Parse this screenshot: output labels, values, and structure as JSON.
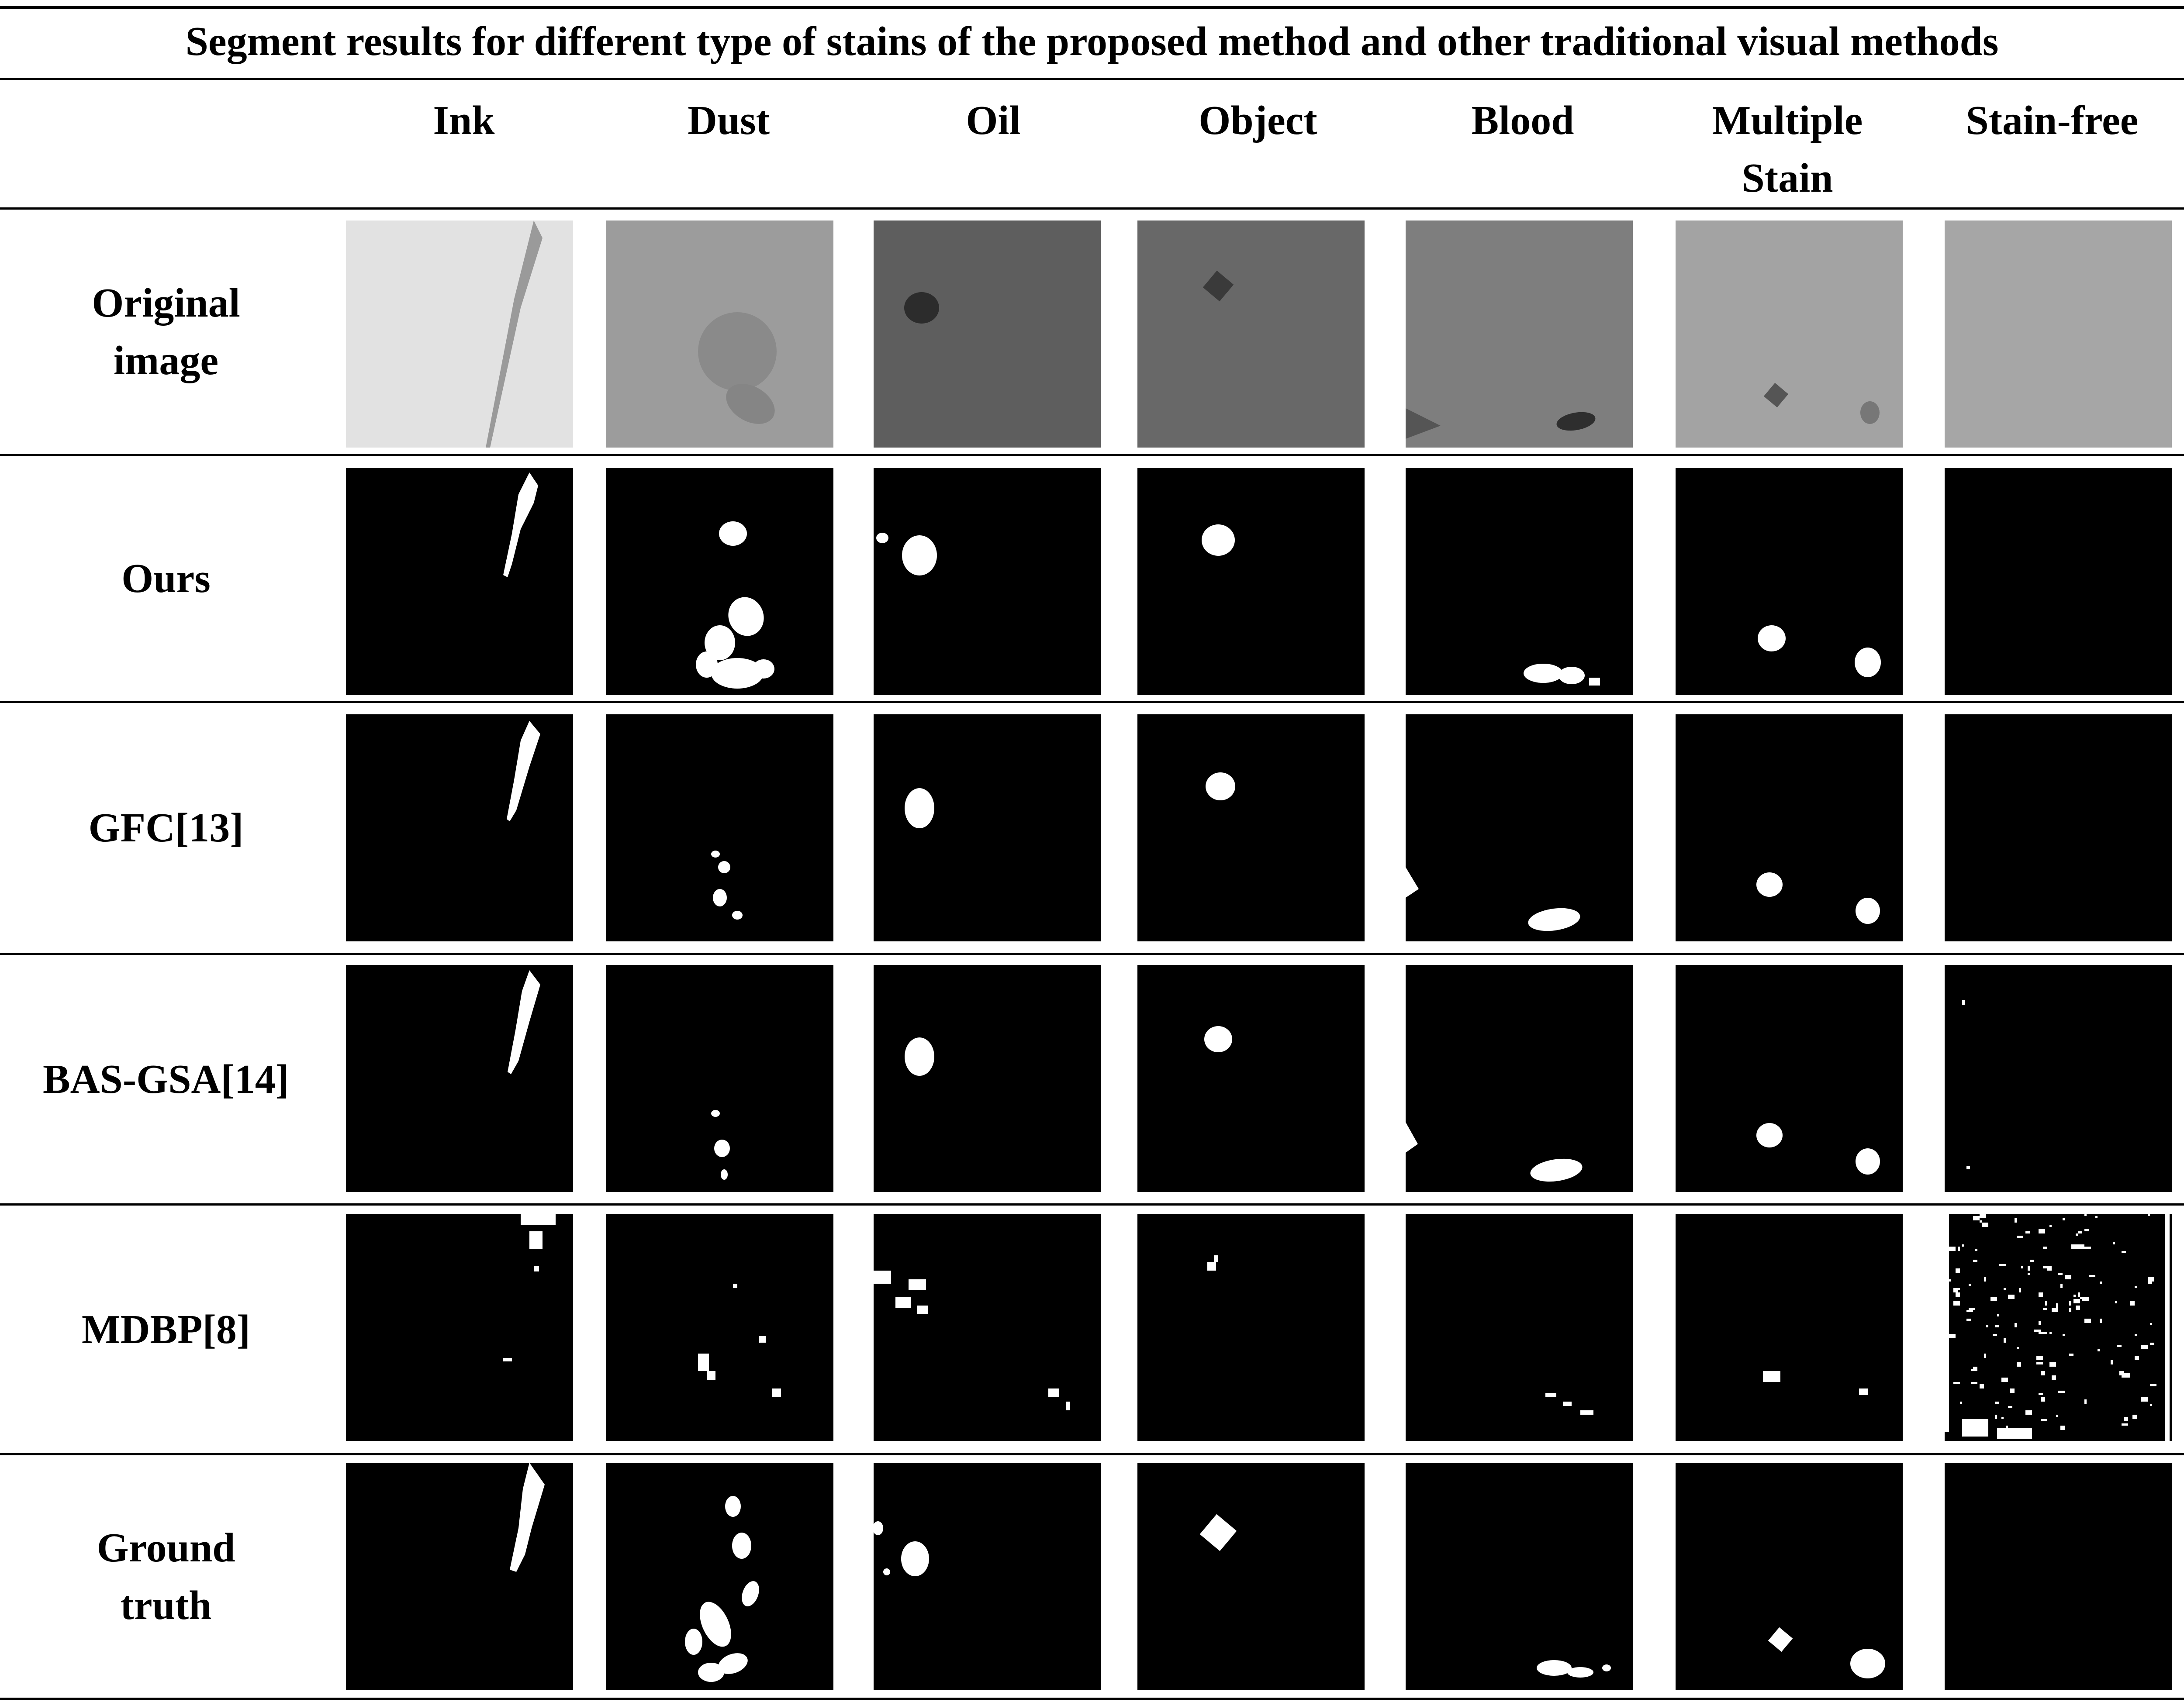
{
  "title": "Segment results for different type of stains of the proposed method and other traditional visual methods",
  "columns": [
    "Ink",
    "Dust",
    "Oil",
    "Object",
    "Blood",
    "Multiple\nStain",
    "Stain-free"
  ],
  "rows": [
    "Original\nimage",
    "Ours",
    "GFC[13]",
    "BAS-GSA[14]",
    "MDBP[8]",
    "Ground\ntruth"
  ],
  "colors": {
    "rule": "#000000",
    "mask_background": "#000000",
    "mask_foreground": "#ffffff"
  },
  "original_tints": [
    "#e2e2e2",
    "#9c9c9c",
    "#5e5e5e",
    "#686868",
    "#7e7e7e",
    "#a3a3a3",
    "#a6a6a6"
  ],
  "cell_contents": {
    "row0": "grayscale fabric photographs with stains",
    "rows1_5": "binary segmentation masks (white = stain, black = background)"
  }
}
